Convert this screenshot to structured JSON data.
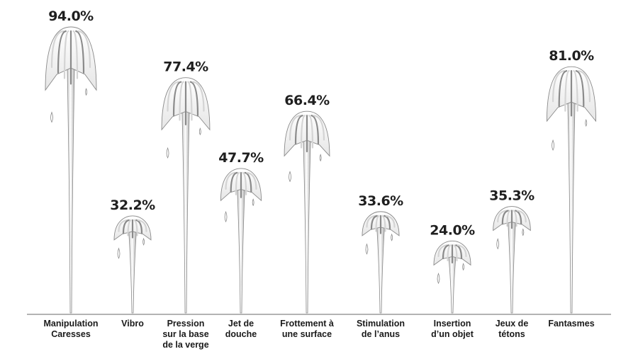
{
  "chart_data": {
    "type": "bar",
    "categories": [
      [
        "Manipulation",
        "Caresses"
      ],
      [
        "Vibro"
      ],
      [
        "Pression",
        "sur la base",
        "de la verge"
      ],
      [
        "Jet de",
        "douche"
      ],
      [
        "Frottement à",
        "une surface"
      ],
      [
        "Stimulation",
        "de l’anus"
      ],
      [
        "Insertion",
        "d’un objet"
      ],
      [
        "Jeux de",
        "tétons"
      ],
      [
        "Fantasmes"
      ]
    ],
    "values": [
      94.0,
      32.2,
      77.4,
      47.7,
      66.4,
      33.6,
      24.0,
      35.3,
      81.0
    ],
    "value_labels": [
      "94.0%",
      "32.2%",
      "77.4%",
      "47.7%",
      "66.4%",
      "33.6%",
      "24.0%",
      "35.3%",
      "81.0%"
    ],
    "title": "",
    "xlabel": "",
    "ylabel": "",
    "ylim": [
      0,
      100
    ],
    "grid": false,
    "legend": "none",
    "style": "fountain",
    "colors": {
      "baseline": "#9a9a9a",
      "stroke": "#8a8a8a",
      "shade": "#d4d4d4",
      "text": "#1f1f1f"
    }
  }
}
